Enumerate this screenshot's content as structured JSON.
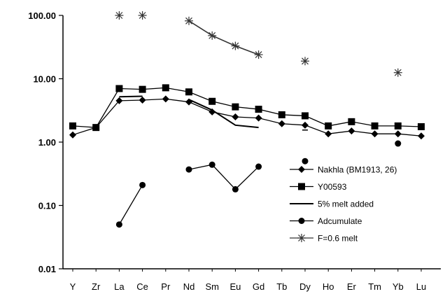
{
  "chart_data": {
    "type": "line",
    "title": "",
    "xlabel": "",
    "ylabel": "",
    "yscale": "log",
    "ylim": [
      0.01,
      100
    ],
    "y_ticks": [
      "0.01",
      "0.10",
      "1.00",
      "10.00",
      "100.00"
    ],
    "y_tick_values": [
      0.01,
      0.1,
      1,
      10,
      100
    ],
    "grid": false,
    "legend_position": "bottom-right",
    "categories": [
      "Y",
      "Zr",
      "La",
      "Ce",
      "Pr",
      "Nd",
      "Sm",
      "Eu",
      "Gd",
      "Tb",
      "Dy",
      "Ho",
      "Er",
      "Tm",
      "Yb",
      "Lu"
    ],
    "series": [
      {
        "name": "Nakhla (BM1913, 26)",
        "marker": "diamond",
        "color": "#000000",
        "values": [
          1.3,
          1.7,
          4.5,
          4.6,
          4.8,
          4.3,
          3.0,
          2.5,
          2.4,
          1.95,
          1.85,
          1.35,
          1.5,
          1.35,
          1.35,
          1.25
        ]
      },
      {
        "name": "Y00593",
        "marker": "square",
        "color": "#000000",
        "values": [
          1.8,
          1.7,
          7.0,
          6.8,
          7.2,
          6.2,
          4.4,
          3.6,
          3.3,
          2.7,
          2.6,
          1.8,
          2.1,
          1.8,
          1.8,
          1.75
        ]
      },
      {
        "name": "5% melt added",
        "marker": "none",
        "color": "#000000",
        "values": [
          null,
          null,
          5.2,
          5.3,
          null,
          4.7,
          3.2,
          1.85,
          1.7,
          null,
          1.55,
          null,
          null,
          null,
          null,
          null
        ],
        "segments": [
          [
            2,
            3
          ],
          [
            5,
            8
          ]
        ]
      },
      {
        "name": "Adcumulate",
        "marker": "circle",
        "color": "#000000",
        "values": [
          null,
          null,
          0.05,
          0.21,
          null,
          0.37,
          0.44,
          0.18,
          0.41,
          null,
          0.5,
          null,
          null,
          null,
          0.95,
          null
        ],
        "segments": [
          [
            2,
            3
          ],
          [
            5,
            8
          ]
        ]
      },
      {
        "name": "F=0.6 melt",
        "marker": "asterisk",
        "color": "#000000",
        "values": [
          null,
          null,
          100,
          100,
          null,
          82,
          48,
          33,
          24,
          null,
          19,
          null,
          null,
          null,
          12.5,
          null
        ],
        "segments": [
          [
            5,
            8
          ]
        ]
      }
    ]
  }
}
